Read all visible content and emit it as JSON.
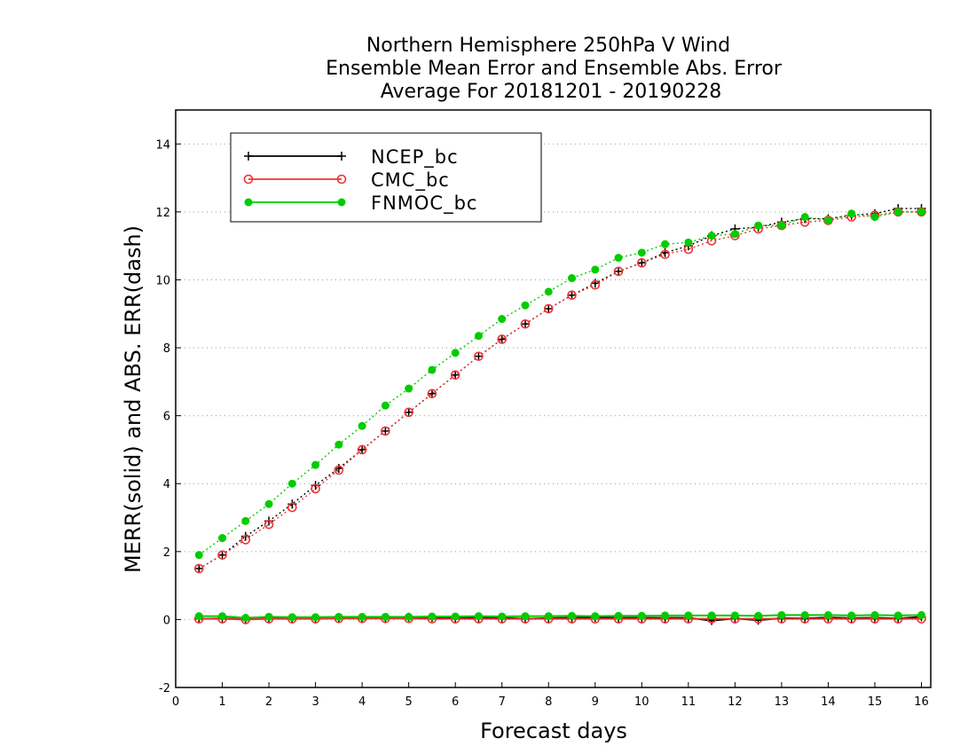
{
  "chart_data": {
    "type": "line",
    "title": [
      "Northern Hemisphere 250hPa V Wind",
      "Ensemble Mean Error and Ensemble Abs. Error",
      "Average For 20181201 - 20190228"
    ],
    "xlabel": "Forecast days",
    "ylabel": "MERR(solid) and ABS. ERR(dash)",
    "xlim": [
      0,
      16.2
    ],
    "ylim": [
      -2,
      15
    ],
    "xticks": [
      0,
      1,
      2,
      3,
      4,
      5,
      6,
      7,
      8,
      9,
      10,
      11,
      12,
      13,
      14,
      15,
      16
    ],
    "yticks": [
      -2,
      0,
      2,
      4,
      6,
      8,
      10,
      12,
      14
    ],
    "grid": "horizontal dotted",
    "legend_position": "top-left",
    "x": [
      0.5,
      1.0,
      1.5,
      2.0,
      2.5,
      3.0,
      3.5,
      4.0,
      4.5,
      5.0,
      5.5,
      6.0,
      6.5,
      7.0,
      7.5,
      8.0,
      8.5,
      9.0,
      9.5,
      10.0,
      10.5,
      11.0,
      11.5,
      12.0,
      12.5,
      13.0,
      13.5,
      14.0,
      14.5,
      15.0,
      15.5,
      16.0
    ],
    "series": [
      {
        "name": "NCEP_bc",
        "color": "#000000",
        "marker": "plus",
        "abs_error": [
          1.5,
          1.9,
          2.45,
          2.9,
          3.4,
          3.95,
          4.45,
          5.0,
          5.55,
          6.1,
          6.65,
          7.2,
          7.75,
          8.25,
          8.7,
          9.15,
          9.55,
          9.9,
          10.25,
          10.5,
          10.8,
          11.0,
          11.3,
          11.5,
          11.55,
          11.7,
          11.8,
          11.8,
          11.9,
          11.95,
          12.1,
          12.1
        ],
        "mean_error": [
          0.02,
          0.03,
          0.01,
          0.03,
          0.03,
          0.03,
          0.05,
          0.05,
          0.05,
          0.07,
          0.06,
          0.05,
          0.05,
          0.05,
          0.02,
          0.04,
          0.05,
          0.06,
          0.05,
          0.05,
          0.05,
          0.05,
          -0.03,
          0.03,
          -0.02,
          0.04,
          0.03,
          0.06,
          0.04,
          0.05,
          0.03,
          0.08
        ]
      },
      {
        "name": "CMC_bc",
        "color": "#ee3333",
        "marker": "open-circle",
        "abs_error": [
          1.5,
          1.9,
          2.35,
          2.8,
          3.3,
          3.85,
          4.4,
          5.0,
          5.55,
          6.1,
          6.65,
          7.2,
          7.75,
          8.25,
          8.7,
          9.15,
          9.55,
          9.85,
          10.25,
          10.5,
          10.75,
          10.9,
          11.15,
          11.3,
          11.5,
          11.6,
          11.7,
          11.75,
          11.85,
          11.9,
          12.0,
          12.0
        ],
        "mean_error": [
          0.02,
          0.02,
          0.0,
          0.02,
          0.02,
          0.02,
          0.03,
          0.03,
          0.03,
          0.03,
          0.02,
          0.02,
          0.02,
          0.02,
          0.02,
          0.02,
          0.02,
          0.02,
          0.02,
          0.02,
          0.02,
          0.02,
          0.02,
          0.02,
          0.02,
          0.02,
          0.02,
          0.02,
          0.02,
          0.02,
          0.02,
          0.02
        ]
      },
      {
        "name": "FNMOC_bc",
        "color": "#00cc00",
        "marker": "filled-circle",
        "abs_error": [
          1.9,
          2.4,
          2.9,
          3.4,
          4.0,
          4.55,
          5.15,
          5.7,
          6.3,
          6.8,
          7.35,
          7.85,
          8.35,
          8.85,
          9.25,
          9.65,
          10.05,
          10.3,
          10.65,
          10.8,
          11.05,
          11.1,
          11.3,
          11.35,
          11.6,
          11.6,
          11.85,
          11.75,
          11.95,
          11.85,
          12.0,
          12.0
        ],
        "mean_error": [
          0.1,
          0.1,
          0.05,
          0.08,
          0.07,
          0.07,
          0.08,
          0.08,
          0.08,
          0.08,
          0.09,
          0.09,
          0.1,
          0.09,
          0.1,
          0.1,
          0.11,
          0.1,
          0.11,
          0.11,
          0.12,
          0.12,
          0.12,
          0.12,
          0.11,
          0.13,
          0.13,
          0.13,
          0.12,
          0.13,
          0.12,
          0.13
        ]
      }
    ]
  }
}
